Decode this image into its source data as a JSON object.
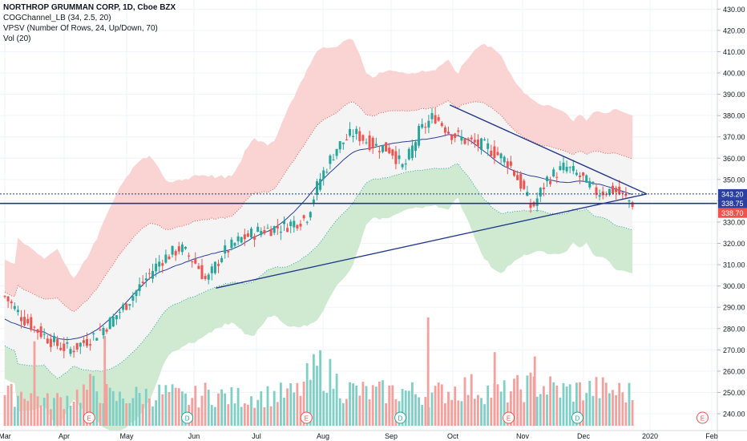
{
  "legend": {
    "title": "NORTHROP GRUMMAN CORP, 1D, Cboe BZX",
    "line1": "COGChannel_LB (34, 2.5, 20)",
    "line2": "VPSV (Number Of Rows, 24, Up/Down, 70)",
    "line3": "Vol (20)"
  },
  "colors": {
    "up": "#26a69a",
    "down": "#ef5350",
    "vol_up": "#7fcfc6",
    "vol_down": "#f4a09c",
    "upper_band": "#f8cdcb",
    "lower_band": "#c8e6c9",
    "mid_fill": "#f3f3f3",
    "basis": "#2a3f9f",
    "trend": "#233a8a",
    "price_badge": "#ef5350",
    "level_badge": "#2a3f9f"
  },
  "chart_data": {
    "type": "candlestick",
    "symbol": "NORTHROP GRUMMAN CORP",
    "interval": "1D",
    "exchange": "Cboe BZX",
    "y_axis_ticks": [
      240,
      250,
      260,
      270,
      280,
      290,
      300,
      310,
      320,
      330,
      340,
      350,
      360,
      370,
      380,
      390,
      400,
      410,
      420,
      430
    ],
    "ylim": [
      237,
      432
    ],
    "x_axis_labels": [
      "Mar",
      "Apr",
      "May",
      "Jun",
      "Jul",
      "Aug",
      "Sep",
      "Oct",
      "Nov",
      "Dec",
      "2020",
      "Feb"
    ],
    "price_labels": {
      "level_upper": "343.20",
      "level_lower": "338.75",
      "last_price": "338.70"
    },
    "event_markers": [
      {
        "label": "E",
        "month": "Apr",
        "frac": 0.4
      },
      {
        "label": "D",
        "month": "May",
        "frac": 0.9
      },
      {
        "label": "E",
        "month": "Jul",
        "frac": 0.75
      },
      {
        "label": "D",
        "month": "Sep",
        "frac": 0.15
      },
      {
        "label": "E",
        "month": "Oct",
        "frac": 0.8
      },
      {
        "label": "D",
        "month": "Nov",
        "frac": 0.9
      },
      {
        "label": "E",
        "month": "2020",
        "frac": 0.85
      }
    ],
    "price_path": [
      [
        "Mar",
        0.0,
        295
      ],
      [
        "Mar",
        0.3,
        285
      ],
      [
        "Mar",
        0.6,
        278
      ],
      [
        "Mar",
        0.9,
        272
      ],
      [
        "Apr",
        0.1,
        270
      ],
      [
        "Apr",
        0.4,
        275
      ],
      [
        "Apr",
        0.7,
        282
      ],
      [
        "Apr",
        0.95,
        290
      ],
      [
        "May",
        0.2,
        300
      ],
      [
        "May",
        0.5,
        312
      ],
      [
        "May",
        0.8,
        318
      ],
      [
        "Jun",
        0.05,
        310
      ],
      [
        "Jun",
        0.2,
        302
      ],
      [
        "Jun",
        0.45,
        315
      ],
      [
        "Jun",
        0.75,
        322
      ],
      [
        "Jul",
        0.05,
        326
      ],
      [
        "Jul",
        0.4,
        328
      ],
      [
        "Jul",
        0.75,
        332
      ],
      [
        "Jul",
        0.95,
        350
      ],
      [
        "Aug",
        0.2,
        365
      ],
      [
        "Aug",
        0.45,
        372
      ],
      [
        "Aug",
        0.75,
        366
      ],
      [
        "Sep",
        0.0,
        364
      ],
      [
        "Sep",
        0.2,
        355
      ],
      [
        "Sep",
        0.45,
        372
      ],
      [
        "Sep",
        0.7,
        380
      ],
      [
        "Sep",
        0.95,
        372
      ],
      [
        "Oct",
        0.2,
        368
      ],
      [
        "Oct",
        0.5,
        365
      ],
      [
        "Oct",
        0.8,
        358
      ],
      [
        "Nov",
        0.0,
        346
      ],
      [
        "Nov",
        0.15,
        336
      ],
      [
        "Nov",
        0.4,
        350
      ],
      [
        "Nov",
        0.7,
        356
      ],
      [
        "Dec",
        0.0,
        350
      ],
      [
        "Dec",
        0.2,
        344
      ],
      [
        "Dec",
        0.45,
        345
      ],
      [
        "Dec",
        0.75,
        338.7
      ]
    ],
    "volume_path": [
      [
        "Mar",
        0.1,
        0.28
      ],
      [
        "Mar",
        0.4,
        0.32
      ],
      [
        "Mar",
        0.7,
        0.22
      ],
      [
        "Apr",
        0.1,
        0.26
      ],
      [
        "Apr",
        0.45,
        0.36
      ],
      [
        "Apr",
        0.8,
        0.25
      ],
      [
        "May",
        0.2,
        0.28
      ],
      [
        "May",
        0.6,
        0.3
      ],
      [
        "May",
        0.9,
        0.24
      ],
      [
        "Jun",
        0.2,
        0.3
      ],
      [
        "Jun",
        0.6,
        0.26
      ],
      [
        "Jul",
        0.2,
        0.28
      ],
      [
        "Jul",
        0.6,
        0.3
      ],
      [
        "Jul",
        0.95,
        0.55
      ],
      [
        "Aug",
        0.3,
        0.34
      ],
      [
        "Aug",
        0.7,
        0.3
      ],
      [
        "Sep",
        0.2,
        0.32
      ],
      [
        "Sep",
        0.6,
        0.28
      ],
      [
        "Oct",
        0.2,
        0.36
      ],
      [
        "Oct",
        0.7,
        0.3
      ],
      [
        "Nov",
        0.2,
        0.38
      ],
      [
        "Nov",
        0.7,
        0.32
      ],
      [
        "Dec",
        0.2,
        0.34
      ],
      [
        "Dec",
        0.7,
        0.3
      ]
    ],
    "volume_spikes": [
      [
        "Apr",
        0.65,
        0.83
      ],
      [
        "Sep",
        0.6,
        1.0
      ],
      [
        "Nov",
        0.2,
        0.64
      ],
      [
        "Oct",
        0.6,
        0.68
      ],
      [
        "Mar",
        0.5,
        0.78
      ]
    ],
    "trend_lines": [
      {
        "from": [
          "Jun",
          0.35,
          299
        ],
        "to": [
          "Dec",
          0.95,
          343.2
        ]
      },
      {
        "from": [
          "Sep",
          0.95,
          385
        ],
        "to": [
          "Dec",
          0.95,
          343.2
        ]
      }
    ],
    "horizontal_levels": [
      343.2,
      338.75
    ]
  }
}
